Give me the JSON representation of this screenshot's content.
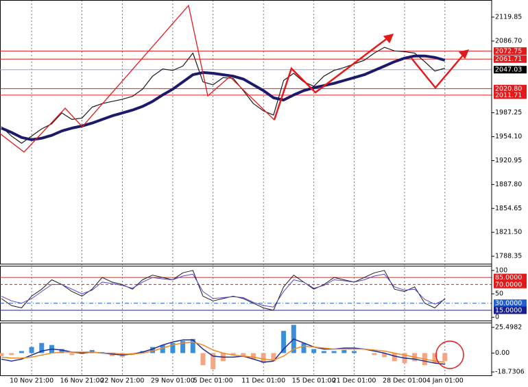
{
  "chart_data": [
    {
      "type": "line",
      "categories": [
        null,
        null,
        null,
        "10 Nov 21:00",
        null,
        null,
        null,
        null,
        "16 Nov 21:00",
        null,
        null,
        null,
        "22 Nov 21:00",
        null,
        null,
        null,
        null,
        "29 Nov 01:00",
        null,
        null,
        null,
        "5 Dec 01:00",
        null,
        null,
        null,
        null,
        "11 Dec 01:00",
        null,
        null,
        null,
        null,
        "15 Dec 01:00",
        null,
        null,
        null,
        "21 Dec 01:00",
        null,
        null,
        null,
        null,
        "28 Dec 01:00",
        null,
        null,
        null,
        "4 Jan 01:00"
      ],
      "ylim": [
        1778,
        2143.6
      ],
      "yticks": [
        2119.85,
        {
          "value": 2086.7,
          "label": "2086.70"
        },
        1987.25,
        {
          "value": 1954.1,
          "label": "1954.10"
        },
        1920.95,
        {
          "value": 1887.8,
          "label": "1887.80"
        },
        1854.65,
        {
          "value": 1821.5,
          "label": "1821.50"
        },
        1788.35
      ],
      "series": [
        {
          "color": "#1a1a1a",
          "width": 1.2,
          "values": [
            1968,
            1955,
            1945,
            1955,
            1965,
            1972,
            1987,
            1978,
            1980,
            1995,
            2000,
            2003,
            2006,
            2010,
            2020,
            2038,
            2048,
            2046,
            2052,
            2070,
            2030,
            2026,
            2036,
            2035,
            2018,
            2000,
            1990,
            1984,
            2032,
            2042,
            2030,
            2024,
            2038,
            2046,
            2050,
            2055,
            2060,
            2070,
            2078,
            2073,
            2072,
            2070,
            2058,
            2045,
            2049
          ]
        },
        {
          "color": "#1c1a6b",
          "width": 4,
          "values": [
            1966,
            1960,
            1953,
            1950,
            1952,
            1956,
            1962,
            1966,
            1969,
            1973,
            1978,
            1983,
            1987,
            1991,
            1996,
            2003,
            2012,
            2020,
            2030,
            2040,
            2043,
            2042,
            2040,
            2038,
            2034,
            2026,
            2018,
            2008,
            2005,
            2012,
            2018,
            2022,
            2025,
            2028,
            2032,
            2036,
            2040,
            2046,
            2052,
            2058,
            2063,
            2066,
            2066,
            2064,
            2060
          ]
        }
      ],
      "levels": [
        {
          "value": 2072.75,
          "color": "#e31a1c"
        },
        {
          "value": 2061.71,
          "color": "#e31a1c"
        },
        {
          "value": 2047.03,
          "color": "#8fa0e8",
          "box": "#000000"
        },
        {
          "value": 2020.8,
          "label": "2020.80",
          "color": "#e31a1c"
        },
        {
          "value": 2011.71,
          "color": "#e31a1c"
        }
      ]
    },
    {
      "type": "line",
      "ylim": [
        -7,
        110
      ],
      "yticks": [
        100,
        50,
        0
      ],
      "series": [
        {
          "color": "#1a1a1a",
          "width": 1,
          "values": [
            40,
            25,
            20,
            45,
            60,
            80,
            70,
            55,
            45,
            60,
            85,
            75,
            70,
            60,
            80,
            90,
            85,
            80,
            95,
            100,
            45,
            35,
            40,
            45,
            40,
            30,
            20,
            15,
            65,
            90,
            75,
            60,
            70,
            85,
            80,
            75,
            85,
            95,
            100,
            60,
            55,
            65,
            30,
            20,
            40
          ]
        },
        {
          "color": "#5a3fd1",
          "width": 1,
          "values": [
            45,
            35,
            30,
            40,
            55,
            70,
            70,
            60,
            50,
            58,
            75,
            72,
            68,
            62,
            75,
            85,
            82,
            80,
            88,
            92,
            55,
            40,
            42,
            44,
            42,
            32,
            25,
            22,
            55,
            80,
            75,
            62,
            68,
            80,
            78,
            75,
            80,
            88,
            92,
            65,
            58,
            60,
            38,
            28,
            38
          ]
        }
      ],
      "levels": [
        {
          "value": 85,
          "label": "85.0000",
          "color": "#e31a1c",
          "dash": "none"
        },
        {
          "value": 70,
          "label": "70.0000",
          "color": "#e31a1c",
          "dash": "4 3"
        },
        {
          "value": 30,
          "label": "30.0000",
          "color": "#1f5fd1",
          "dash": "6 3 1 3"
        },
        {
          "value": 15,
          "label": "15.0000",
          "color": "#1a1f8f",
          "dash": "none"
        }
      ]
    },
    {
      "type": "macd",
      "ylim": [
        -22.1,
        30.2
      ],
      "yticks": [
        25.4982,
        {
          "value": 0,
          "label": "0.00"
        },
        -18.7306
      ],
      "series": [
        {
          "style": "bar",
          "color": "#3b8fd9",
          "down_color": "#f4a582",
          "values": [
            -3,
            -2,
            2,
            6,
            10,
            8,
            4,
            -2,
            -1,
            3,
            1,
            -3,
            -4,
            -2,
            2,
            6,
            8,
            10,
            12,
            14,
            -12,
            -16,
            -8,
            -2,
            -4,
            -6,
            -10,
            -8,
            22,
            28,
            10,
            4,
            2,
            2,
            3,
            2,
            0,
            -2,
            -4,
            -8,
            -10,
            -8,
            -12,
            -10,
            -8
          ]
        },
        {
          "style": "line",
          "color": "#1c2a9c",
          "values": [
            -6,
            -8,
            -6,
            -2,
            2,
            4,
            3,
            1,
            0,
            1,
            0,
            -1,
            -2,
            -1,
            1,
            4,
            8,
            11,
            13,
            13,
            4,
            -3,
            -4,
            -4,
            -3,
            -6,
            -9,
            -8,
            4,
            14,
            10,
            6,
            4,
            4,
            5,
            5,
            4,
            2,
            0,
            -3,
            -5,
            -6,
            -8,
            -10,
            -11
          ]
        },
        {
          "style": "line",
          "color": "#f08a24",
          "values": [
            -4,
            -5,
            -5,
            -4,
            -2,
            0,
            1,
            1,
            1,
            1,
            0,
            0,
            -1,
            -1,
            0,
            2,
            5,
            8,
            10,
            11,
            8,
            3,
            0,
            -2,
            -3,
            -4,
            -6,
            -7,
            -3,
            4,
            7,
            6,
            5,
            4,
            4,
            4,
            4,
            3,
            2,
            0,
            -2,
            -4,
            -6,
            -8,
            -9
          ]
        }
      ]
    }
  ]
}
